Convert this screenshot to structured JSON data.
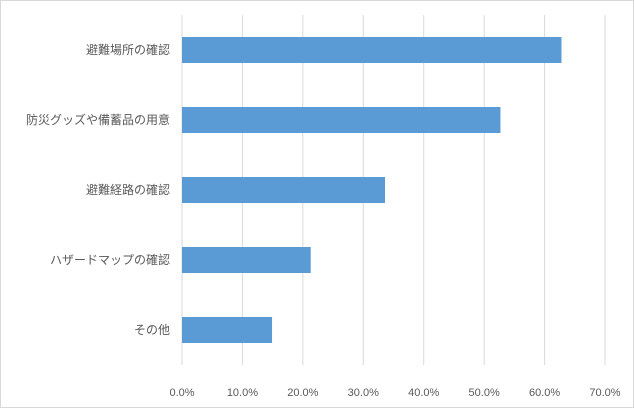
{
  "chart_data": {
    "type": "bar",
    "orientation": "horizontal",
    "categories": [
      "避難場所の確認",
      "防災グッズや備蓄品の用意",
      "避難経路の確認",
      "ハザードマップの確認",
      "その他"
    ],
    "values": [
      62.8,
      52.7,
      33.6,
      21.3,
      14.9
    ],
    "unit": "%",
    "xlim": [
      0,
      70
    ],
    "x_ticks": [
      0,
      10,
      20,
      30,
      40,
      50,
      60,
      70
    ],
    "x_tick_labels": [
      "0.0%",
      "10.0%",
      "20.0%",
      "30.0%",
      "40.0%",
      "50.0%",
      "60.0%",
      "70.0%"
    ],
    "grid": "vertical",
    "legend": "none",
    "bar_color": "#5b9bd5",
    "grid_color": "#d9d9d9"
  }
}
